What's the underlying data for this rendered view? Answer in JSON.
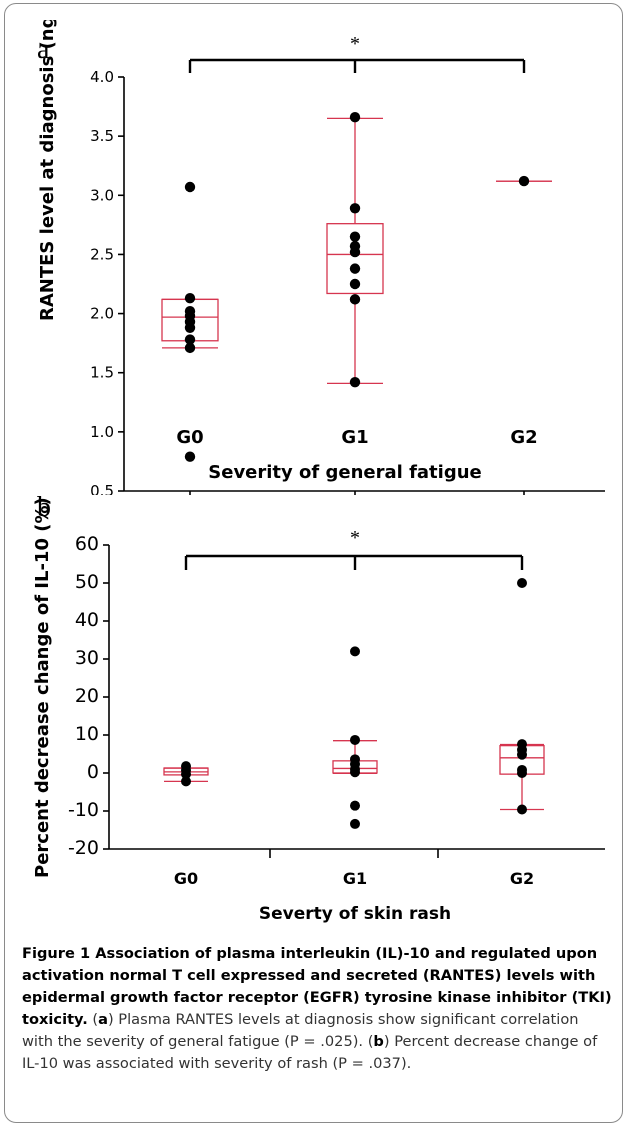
{
  "chart_data": [
    {
      "panel": "a",
      "type": "box",
      "xlabel": "Severity of general fatigue",
      "ylabel": "RANTES level at diagnosis (ng/ml)",
      "categories": [
        "G0",
        "G1",
        "G2"
      ],
      "ylim": [
        0.5,
        4.0
      ],
      "yticks": [
        "0.5",
        "1.0",
        "1.5",
        "2.0",
        "2.5",
        "3.0",
        "3.5",
        "4.0"
      ],
      "boxes": [
        {
          "q1": 1.77,
          "median": 1.97,
          "q3": 2.12,
          "whisker_low": 1.71,
          "whisker_high": 2.12
        },
        {
          "q1": 2.17,
          "median": 2.5,
          "q3": 2.76,
          "whisker_low": 1.41,
          "whisker_high": 3.65
        },
        {
          "q1": 3.12,
          "median": 3.12,
          "q3": 3.12,
          "whisker_low": 3.12,
          "whisker_high": 3.12
        }
      ],
      "points": [
        [
          3.07,
          2.13,
          2.02,
          1.98,
          1.93,
          1.88,
          1.78,
          1.71,
          0.79
        ],
        [
          3.66,
          2.89,
          2.65,
          2.57,
          2.52,
          2.38,
          2.25,
          2.12,
          1.42
        ],
        [
          3.12
        ]
      ],
      "significance": {
        "from": "G0",
        "to": "G2",
        "label": "*"
      },
      "color": "#d6354f"
    },
    {
      "panel": "b",
      "type": "box",
      "xlabel": "Severty of  skin rash",
      "ylabel": "Percent decrease change of IL-10 (%)",
      "categories": [
        "G0",
        "G1",
        "G2"
      ],
      "ylim": [
        -20,
        60
      ],
      "yticks": [
        "-20",
        "-10",
        "0",
        "10",
        "20",
        "30",
        "40",
        "50",
        "60"
      ],
      "boxes": [
        {
          "q1": -0.5,
          "median": 0.3,
          "q3": 1.3,
          "whisker_low": -2.2,
          "whisker_high": 1.3
        },
        {
          "q1": 0.0,
          "median": 1.2,
          "q3": 3.2,
          "whisker_low": -0.1,
          "whisker_high": 8.5
        },
        {
          "q1": -0.3,
          "median": 4.0,
          "q3": 7.2,
          "whisker_low": -9.6,
          "whisker_high": 7.5
        }
      ],
      "points": [
        [
          1.8,
          0.7,
          -0.3,
          -2.2
        ],
        [
          32.0,
          8.7,
          3.6,
          2.3,
          1.0,
          0.2,
          -8.6,
          -13.4
        ],
        [
          50.0,
          7.6,
          6.1,
          4.8,
          0.8,
          0.0,
          -9.6
        ]
      ],
      "significance": {
        "from": "G0",
        "to": "G2",
        "label": "*"
      },
      "color": "#d6354f"
    }
  ],
  "caption": {
    "title": "Figure 1 Association of plasma interleukin (IL)-10 and regulated upon activation normal T cell expressed and secreted (RANTES) levels with epidermal growth factor receptor (EGFR) tyrosine kinase inhibitor (TKI) toxicity.",
    "part_a_open": " (",
    "part_a_letter": "a",
    "part_a_text": ") Plasma RANTES levels at diagnosis show significant correlation with the severity of general fatigue (P = .025). (",
    "part_b_letter": "b",
    "part_b_text": ") Percent decrease change of IL-10 was associated with severity of rash (P = .037)."
  }
}
